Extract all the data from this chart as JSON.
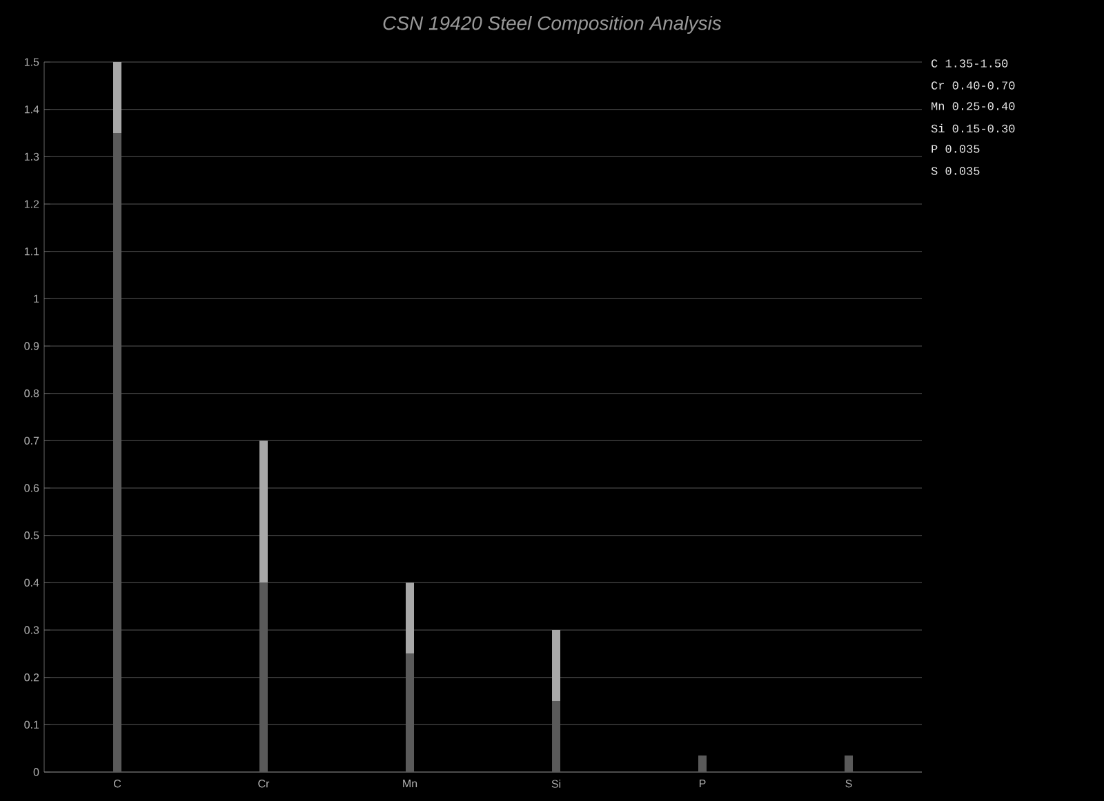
{
  "chart_data": {
    "type": "bar",
    "title": "CSN 19420 Steel Composition Analysis",
    "categories": [
      "C",
      "Cr",
      "Mn",
      "Si",
      "P",
      "S"
    ],
    "stacked": true,
    "series": [
      {
        "color": "#5a5a5a",
        "values": [
          1.35,
          0.4,
          0.25,
          0.15,
          0.035,
          0.035
        ]
      },
      {
        "color": "#a8a8a8",
        "values": [
          0.15,
          0.3,
          0.15,
          0.15,
          0,
          0
        ]
      }
    ],
    "ylim": [
      0,
      1.5
    ],
    "yticks": [
      0,
      0.1,
      0.2,
      0.3,
      0.4,
      0.5,
      0.6,
      0.7,
      0.8,
      0.9,
      1,
      1.1,
      1.2,
      1.3,
      1.4,
      1.5
    ],
    "grid": "y",
    "annotations": [
      "C  1.35-1.50",
      "Cr 0.40-0.70",
      "Mn 0.25-0.40",
      "Si 0.15-0.30",
      "P  0.035",
      "S  0.035"
    ]
  }
}
